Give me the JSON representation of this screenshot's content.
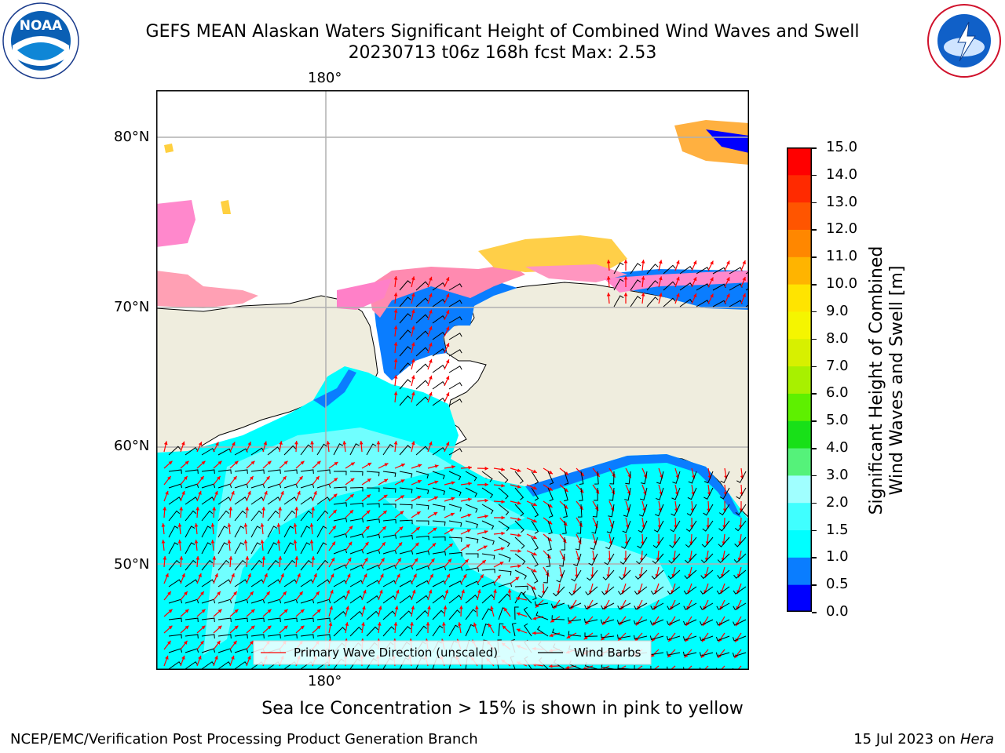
{
  "header": {
    "title_line1": "GEFS MEAN Alaskan Waters Significant Height of Combined Wind Waves and Swell",
    "title_line2": "20230713 t06z 168h fcst   Max: 2.53"
  },
  "logos": {
    "left_text": "NOAA",
    "left_ring": "NATIONAL OCEANIC AND ATMOSPHERIC ADMINISTRATION · U.S. DEPARTMENT OF COMMERCE",
    "right_ring": "NATIONAL WEATHER SERVICE"
  },
  "map": {
    "lon_label_top": "180°",
    "lon_label_bottom": "180°",
    "lat_labels": [
      "80°N",
      "70°N",
      "60°N",
      "50°N"
    ],
    "legend": {
      "wave_label": "Primary Wave Direction (unscaled)",
      "barb_label": "Wind Barbs",
      "wave_color": "#ff0000",
      "barb_color": "#000000"
    },
    "colors": {
      "land": "#efedde",
      "grid": "#b0b0b0"
    }
  },
  "colorbar": {
    "label_line1": "Significant Height of Combined",
    "label_line2": "Wind Waves and Swell [m]",
    "ticks": [
      "15.0",
      "14.0",
      "13.0",
      "12.0",
      "11.0",
      "10.0",
      "9.0",
      "8.0",
      "7.0",
      "6.0",
      "5.0",
      "4.0",
      "3.0",
      "2.0",
      "1.5",
      "1.0",
      "0.5",
      "0.0"
    ],
    "colors_bottom_to_top": [
      "#0000ff",
      "#0a7dff",
      "#00ffff",
      "#40ffff",
      "#a0ffff",
      "#55f27a",
      "#18e018",
      "#5ef000",
      "#a8f000",
      "#d7f000",
      "#f5f500",
      "#ffe400",
      "#ffb400",
      "#ff8700",
      "#ff5500",
      "#ff2a00",
      "#ff0000"
    ]
  },
  "caption": "Sea Ice Concentration > 15% is shown in pink to yellow",
  "footer": {
    "left": "NCEP/EMC/Verification Post Processing Product Generation Branch",
    "right_date": "15 Jul 2023 on ",
    "right_machine": "Hera"
  }
}
